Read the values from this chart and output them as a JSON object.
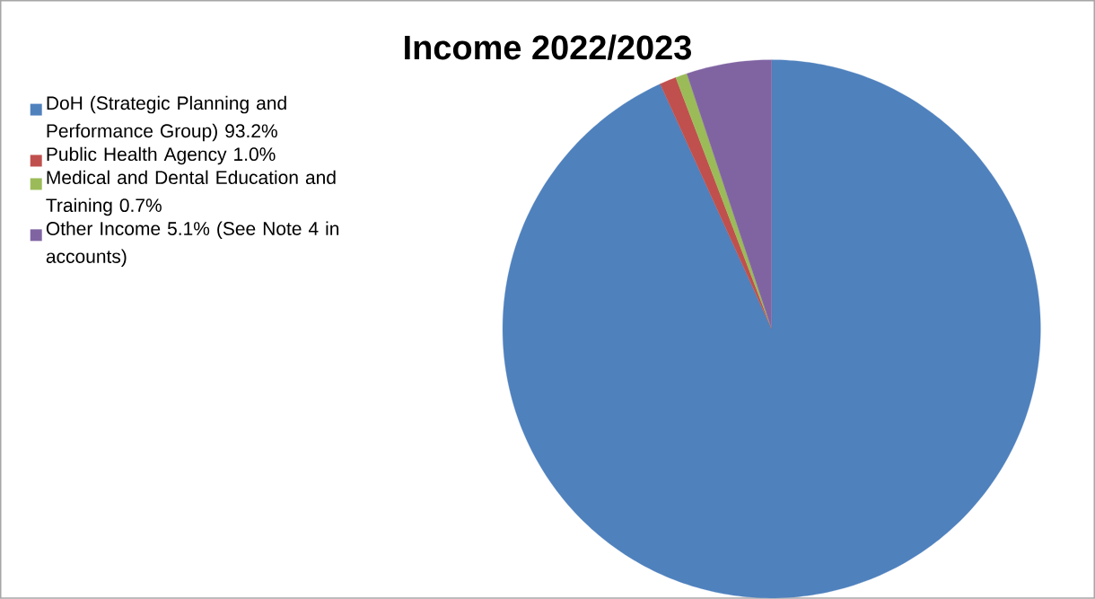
{
  "chart_data": {
    "type": "pie",
    "title": "Income  2022/2023",
    "categories": [
      "DoH (Strategic Planning and Performance Group) 93.2%",
      "Public Health Agency 1.0%",
      "Medical and Dental Education and Training 0.7%",
      "Other Income 5.1%  (See Note 4 in accounts)"
    ],
    "values": [
      93.2,
      1.0,
      0.7,
      5.1
    ],
    "colors": [
      "#4f81bd",
      "#c0504d",
      "#9bbb59",
      "#8064a2"
    ],
    "legend": "left"
  }
}
